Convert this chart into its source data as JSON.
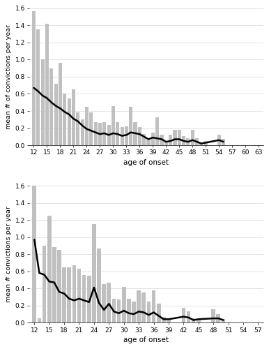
{
  "top": {
    "x_ages": [
      12,
      13,
      14,
      15,
      16,
      17,
      18,
      19,
      20,
      21,
      22,
      23,
      24,
      25,
      26,
      27,
      28,
      29,
      30,
      31,
      32,
      33,
      34,
      35,
      36,
      37,
      38,
      39,
      40,
      41,
      42,
      43,
      44,
      45,
      46,
      47,
      48,
      49,
      50,
      51,
      54,
      55
    ],
    "upper": [
      1.57,
      1.35,
      1.0,
      1.42,
      0.9,
      0.72,
      0.96,
      0.6,
      0.55,
      0.65,
      0.38,
      0.3,
      0.45,
      0.38,
      0.27,
      0.26,
      0.27,
      0.24,
      0.46,
      0.27,
      0.21,
      0.22,
      0.45,
      0.27,
      0.21,
      0.13,
      0.06,
      0.15,
      0.33,
      0.12,
      0.05,
      0.12,
      0.18,
      0.18,
      0.11,
      0.08,
      0.18,
      0.08,
      0.02,
      0.05,
      0.12,
      0.07
    ],
    "lower": [
      0.0,
      0.0,
      0.0,
      0.0,
      0.0,
      0.0,
      0.0,
      0.0,
      0.0,
      0.0,
      0.0,
      0.0,
      0.0,
      0.0,
      0.0,
      0.0,
      0.0,
      0.0,
      0.0,
      0.0,
      0.0,
      0.0,
      0.0,
      0.0,
      0.0,
      0.0,
      0.0,
      0.0,
      0.0,
      0.0,
      0.0,
      0.0,
      0.0,
      0.0,
      0.0,
      0.0,
      0.0,
      0.0,
      0.0,
      0.0,
      0.0,
      0.0
    ],
    "mean": [
      0.67,
      0.63,
      0.58,
      0.55,
      0.5,
      0.46,
      0.43,
      0.39,
      0.36,
      0.31,
      0.28,
      0.23,
      0.19,
      0.17,
      0.15,
      0.13,
      0.14,
      0.12,
      0.14,
      0.13,
      0.11,
      0.12,
      0.15,
      0.14,
      0.13,
      0.1,
      0.07,
      0.09,
      0.08,
      0.07,
      0.04,
      0.05,
      0.07,
      0.07,
      0.05,
      0.04,
      0.06,
      0.04,
      0.02,
      0.03,
      0.06,
      0.04
    ],
    "xlim": [
      11,
      64
    ],
    "xticks": [
      12,
      15,
      18,
      21,
      24,
      27,
      30,
      33,
      36,
      39,
      42,
      45,
      48,
      51,
      54,
      57,
      60,
      63
    ],
    "ylim": [
      0,
      1.6
    ],
    "yticks": [
      0.0,
      0.2,
      0.4,
      0.6,
      0.8,
      1.0,
      1.2,
      1.4,
      1.6
    ],
    "ylabel": "mean # of convictions per year",
    "xlabel": "age of onset"
  },
  "bottom": {
    "x_ages": [
      12,
      13,
      14,
      15,
      16,
      17,
      18,
      19,
      20,
      21,
      22,
      23,
      24,
      25,
      26,
      27,
      28,
      29,
      30,
      31,
      32,
      33,
      34,
      35,
      36,
      37,
      38,
      39,
      42,
      43,
      44,
      45,
      48,
      49,
      50
    ],
    "upper": [
      1.6,
      0.05,
      0.9,
      1.25,
      0.88,
      0.85,
      0.65,
      0.65,
      0.67,
      0.63,
      0.56,
      0.55,
      1.15,
      0.87,
      0.45,
      0.47,
      0.28,
      0.27,
      0.42,
      0.28,
      0.25,
      0.38,
      0.35,
      0.25,
      0.38,
      0.22,
      0.07,
      0.05,
      0.17,
      0.13,
      0.05,
      0.05,
      0.16,
      0.1,
      0.04
    ],
    "lower": [
      0.0,
      0.0,
      0.0,
      0.0,
      0.0,
      0.0,
      0.0,
      0.0,
      0.0,
      0.0,
      0.0,
      0.0,
      0.0,
      0.0,
      0.0,
      0.0,
      0.0,
      0.0,
      0.0,
      0.0,
      0.0,
      0.0,
      0.0,
      0.0,
      0.0,
      0.0,
      0.0,
      0.0,
      0.0,
      0.0,
      0.0,
      0.0,
      0.0,
      0.0,
      0.0
    ],
    "mean": [
      0.97,
      0.58,
      0.56,
      0.48,
      0.47,
      0.36,
      0.34,
      0.28,
      0.26,
      0.28,
      0.26,
      0.24,
      0.41,
      0.23,
      0.15,
      0.22,
      0.13,
      0.11,
      0.14,
      0.11,
      0.1,
      0.13,
      0.12,
      0.09,
      0.12,
      0.08,
      0.04,
      0.04,
      0.07,
      0.06,
      0.03,
      0.04,
      0.05,
      0.05,
      0.03
    ],
    "xlim": [
      11,
      58
    ],
    "xticks": [
      12,
      15,
      18,
      21,
      24,
      27,
      30,
      33,
      36,
      39,
      42,
      45,
      48,
      51,
      54,
      57
    ],
    "ylim": [
      0,
      1.6
    ],
    "yticks": [
      0.0,
      0.2,
      0.4,
      0.6,
      0.8,
      1.0,
      1.2,
      1.4,
      1.6
    ],
    "ylabel": "mean # convictions per year",
    "xlabel": "age of onset"
  },
  "gray_color": "#c0c0c0",
  "line_color": "#000000",
  "bg_color": "#ffffff",
  "grid_color": "#d8d8d8"
}
